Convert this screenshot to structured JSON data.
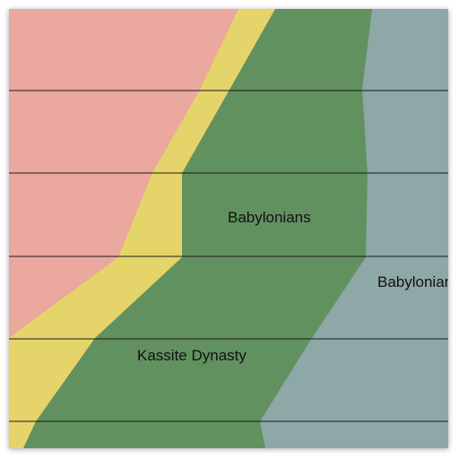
{
  "map": {
    "labels": {
      "babylonians_center": "Babylonians",
      "babylonians_right": "Babylonians",
      "kassite": "Kassite Dynasty"
    },
    "colors": {
      "pink_region": "#eaa89e",
      "yellow_region": "#e5d46a",
      "green_region": "#61915f",
      "gray_region": "#8ea8a8",
      "row_line": "#1a1a1a"
    }
  }
}
